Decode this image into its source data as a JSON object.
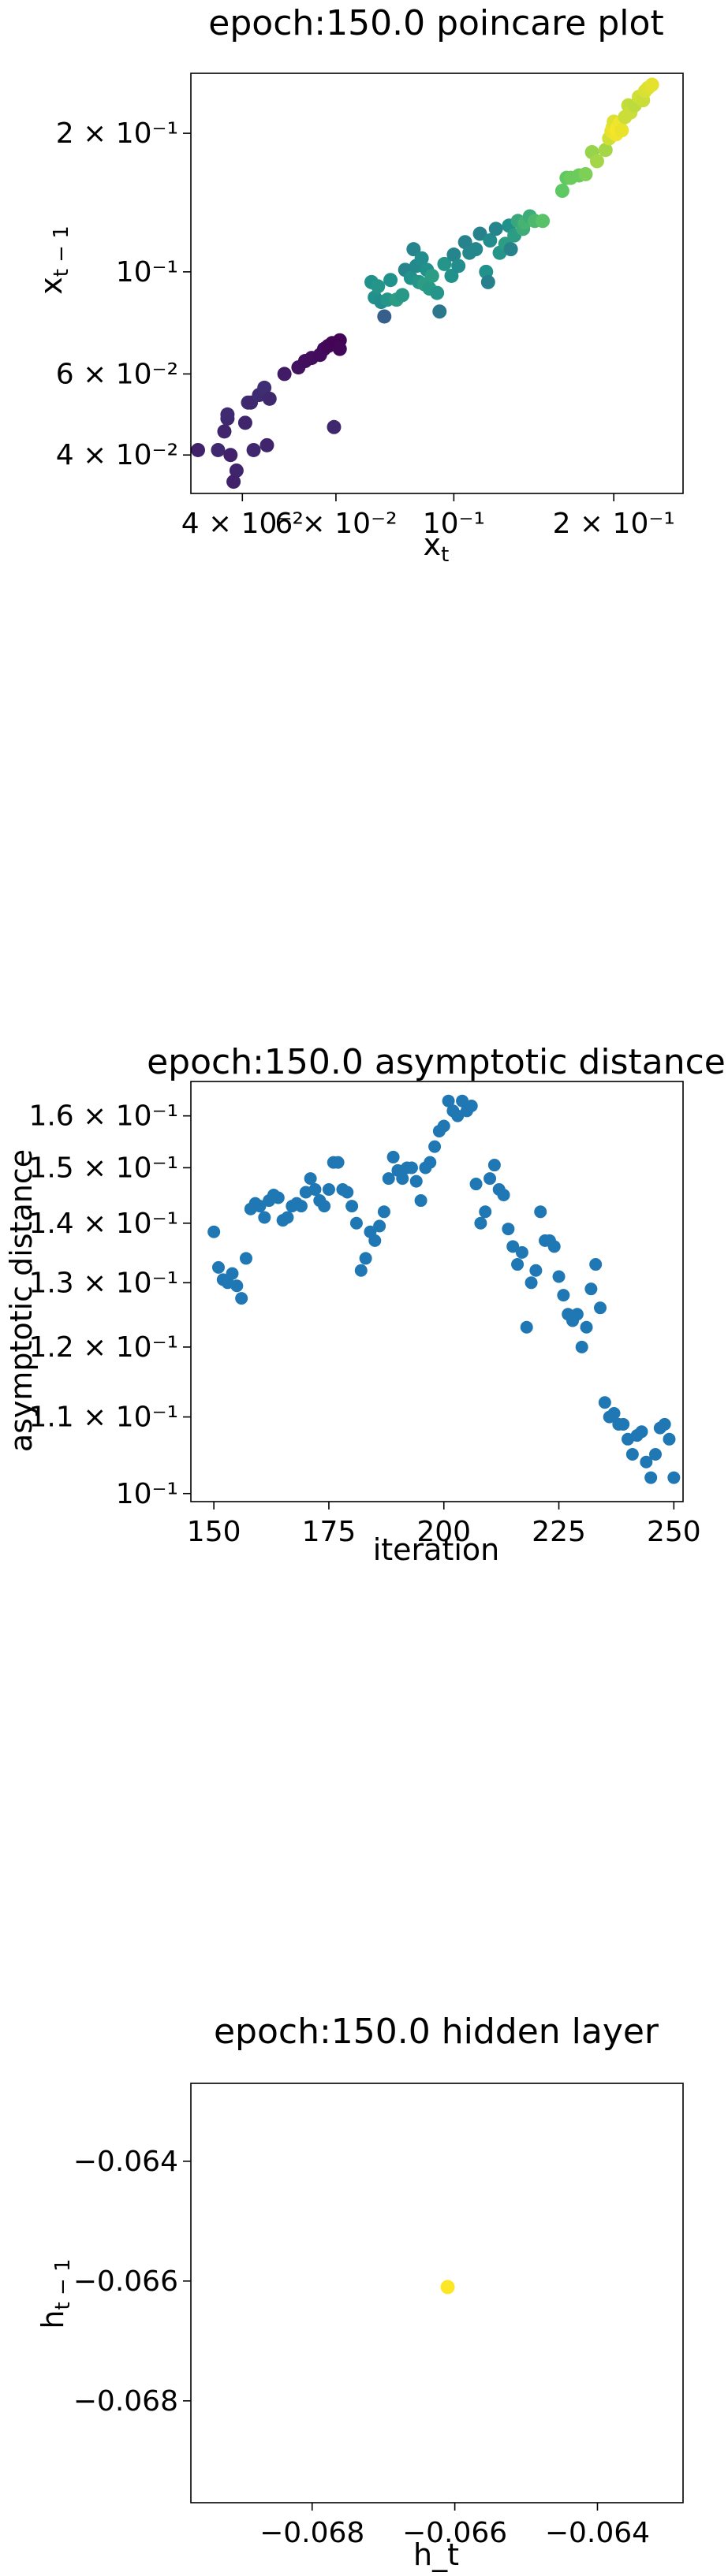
{
  "chart_data": [
    {
      "type": "scatter",
      "title": "epoch:150.0 poincare plot",
      "xlabel": "x_t",
      "ylabel": "x_{t-1}",
      "xscale": "log",
      "yscale": "log",
      "xlim": [
        0.032,
        0.27
      ],
      "ylim": [
        0.033,
        0.27
      ],
      "xticks": [
        {
          "value": 0.04,
          "label": "4 × 10⁻²"
        },
        {
          "value": 0.06,
          "label": "6 × 10⁻²"
        },
        {
          "value": 0.1,
          "label": "10⁻¹"
        },
        {
          "value": 0.2,
          "label": "2 × 10⁻¹"
        }
      ],
      "yticks": [
        {
          "value": 0.04,
          "label": "4 × 10⁻²"
        },
        {
          "value": 0.06,
          "label": "6 × 10⁻²"
        },
        {
          "value": 0.1,
          "label": "10⁻¹"
        },
        {
          "value": 0.2,
          "label": "2 × 10⁻¹"
        }
      ],
      "colormap": "viridis",
      "grid": false,
      "points": [
        {
          "x": 0.033,
          "y": 0.041,
          "c": 0.1
        },
        {
          "x": 0.036,
          "y": 0.041,
          "c": 0.12
        },
        {
          "x": 0.037,
          "y": 0.045,
          "c": 0.11
        },
        {
          "x": 0.0375,
          "y": 0.048,
          "c": 0.12
        },
        {
          "x": 0.0375,
          "y": 0.049,
          "c": 0.13
        },
        {
          "x": 0.038,
          "y": 0.04,
          "c": 0.1
        },
        {
          "x": 0.039,
          "y": 0.037,
          "c": 0.11
        },
        {
          "x": 0.0385,
          "y": 0.035,
          "c": 0.1
        },
        {
          "x": 0.041,
          "y": 0.052,
          "c": 0.13
        },
        {
          "x": 0.0415,
          "y": 0.052,
          "c": 0.12
        },
        {
          "x": 0.0405,
          "y": 0.047,
          "c": 0.11
        },
        {
          "x": 0.042,
          "y": 0.041,
          "c": 0.12
        },
        {
          "x": 0.043,
          "y": 0.054,
          "c": 0.13
        },
        {
          "x": 0.044,
          "y": 0.056,
          "c": 0.14
        },
        {
          "x": 0.0445,
          "y": 0.042,
          "c": 0.11
        },
        {
          "x": 0.045,
          "y": 0.053,
          "c": 0.12
        },
        {
          "x": 0.048,
          "y": 0.06,
          "c": 0.08
        },
        {
          "x": 0.051,
          "y": 0.062,
          "c": 0.05
        },
        {
          "x": 0.0525,
          "y": 0.064,
          "c": 0.04
        },
        {
          "x": 0.054,
          "y": 0.065,
          "c": 0.04
        },
        {
          "x": 0.056,
          "y": 0.066,
          "c": 0.03
        },
        {
          "x": 0.057,
          "y": 0.068,
          "c": 0.03
        },
        {
          "x": 0.058,
          "y": 0.069,
          "c": 0.02
        },
        {
          "x": 0.059,
          "y": 0.07,
          "c": 0.02
        },
        {
          "x": 0.06,
          "y": 0.07,
          "c": 0.01
        },
        {
          "x": 0.061,
          "y": 0.071,
          "c": 0.01
        },
        {
          "x": 0.061,
          "y": 0.068,
          "c": 0.02
        },
        {
          "x": 0.0595,
          "y": 0.046,
          "c": 0.12
        },
        {
          "x": 0.07,
          "y": 0.095,
          "c": 0.5
        },
        {
          "x": 0.071,
          "y": 0.088,
          "c": 0.5
        },
        {
          "x": 0.072,
          "y": 0.093,
          "c": 0.52
        },
        {
          "x": 0.073,
          "y": 0.086,
          "c": 0.48
        },
        {
          "x": 0.074,
          "y": 0.08,
          "c": 0.3
        },
        {
          "x": 0.075,
          "y": 0.087,
          "c": 0.52
        },
        {
          "x": 0.076,
          "y": 0.096,
          "c": 0.5
        },
        {
          "x": 0.078,
          "y": 0.087,
          "c": 0.55
        },
        {
          "x": 0.08,
          "y": 0.089,
          "c": 0.53
        },
        {
          "x": 0.081,
          "y": 0.101,
          "c": 0.45
        },
        {
          "x": 0.083,
          "y": 0.097,
          "c": 0.5
        },
        {
          "x": 0.084,
          "y": 0.112,
          "c": 0.45
        },
        {
          "x": 0.085,
          "y": 0.103,
          "c": 0.47
        },
        {
          "x": 0.086,
          "y": 0.095,
          "c": 0.52
        },
        {
          "x": 0.087,
          "y": 0.107,
          "c": 0.48
        },
        {
          "x": 0.088,
          "y": 0.094,
          "c": 0.55
        },
        {
          "x": 0.089,
          "y": 0.101,
          "c": 0.5
        },
        {
          "x": 0.09,
          "y": 0.092,
          "c": 0.53
        },
        {
          "x": 0.091,
          "y": 0.098,
          "c": 0.55
        },
        {
          "x": 0.093,
          "y": 0.09,
          "c": 0.52
        },
        {
          "x": 0.094,
          "y": 0.082,
          "c": 0.4
        },
        {
          "x": 0.096,
          "y": 0.104,
          "c": 0.52
        },
        {
          "x": 0.099,
          "y": 0.098,
          "c": 0.5
        },
        {
          "x": 0.1,
          "y": 0.109,
          "c": 0.45
        },
        {
          "x": 0.102,
          "y": 0.103,
          "c": 0.48
        },
        {
          "x": 0.105,
          "y": 0.116,
          "c": 0.44
        },
        {
          "x": 0.107,
          "y": 0.11,
          "c": 0.46
        },
        {
          "x": 0.11,
          "y": 0.112,
          "c": 0.46
        },
        {
          "x": 0.112,
          "y": 0.121,
          "c": 0.44
        },
        {
          "x": 0.115,
          "y": 0.1,
          "c": 0.5
        },
        {
          "x": 0.116,
          "y": 0.095,
          "c": 0.43
        },
        {
          "x": 0.117,
          "y": 0.117,
          "c": 0.48
        },
        {
          "x": 0.12,
          "y": 0.124,
          "c": 0.45
        },
        {
          "x": 0.122,
          "y": 0.11,
          "c": 0.52
        },
        {
          "x": 0.125,
          "y": 0.115,
          "c": 0.55
        },
        {
          "x": 0.127,
          "y": 0.126,
          "c": 0.5
        },
        {
          "x": 0.128,
          "y": 0.112,
          "c": 0.44
        },
        {
          "x": 0.13,
          "y": 0.12,
          "c": 0.55
        },
        {
          "x": 0.132,
          "y": 0.129,
          "c": 0.6
        },
        {
          "x": 0.135,
          "y": 0.124,
          "c": 0.62
        },
        {
          "x": 0.136,
          "y": 0.128,
          "c": 0.65
        },
        {
          "x": 0.139,
          "y": 0.132,
          "c": 0.62
        },
        {
          "x": 0.142,
          "y": 0.129,
          "c": 0.68
        },
        {
          "x": 0.147,
          "y": 0.129,
          "c": 0.72
        },
        {
          "x": 0.16,
          "y": 0.15,
          "c": 0.75
        },
        {
          "x": 0.163,
          "y": 0.16,
          "c": 0.75
        },
        {
          "x": 0.166,
          "y": 0.16,
          "c": 0.77
        },
        {
          "x": 0.172,
          "y": 0.162,
          "c": 0.77
        },
        {
          "x": 0.177,
          "y": 0.163,
          "c": 0.8
        },
        {
          "x": 0.182,
          "y": 0.182,
          "c": 0.84
        },
        {
          "x": 0.186,
          "y": 0.174,
          "c": 0.86
        },
        {
          "x": 0.193,
          "y": 0.184,
          "c": 0.86
        },
        {
          "x": 0.196,
          "y": 0.195,
          "c": 0.93
        },
        {
          "x": 0.198,
          "y": 0.202,
          "c": 0.96
        },
        {
          "x": 0.199,
          "y": 0.206,
          "c": 0.97
        },
        {
          "x": 0.2,
          "y": 0.212,
          "c": 0.95
        },
        {
          "x": 0.202,
          "y": 0.199,
          "c": 0.98
        },
        {
          "x": 0.203,
          "y": 0.205,
          "c": 0.99
        },
        {
          "x": 0.205,
          "y": 0.21,
          "c": 0.98
        },
        {
          "x": 0.207,
          "y": 0.203,
          "c": 0.97
        },
        {
          "x": 0.21,
          "y": 0.217,
          "c": 0.92
        },
        {
          "x": 0.213,
          "y": 0.23,
          "c": 0.91
        },
        {
          "x": 0.215,
          "y": 0.222,
          "c": 0.92
        },
        {
          "x": 0.219,
          "y": 0.23,
          "c": 0.9
        },
        {
          "x": 0.223,
          "y": 0.24,
          "c": 0.93
        },
        {
          "x": 0.227,
          "y": 0.236,
          "c": 0.92
        },
        {
          "x": 0.229,
          "y": 0.247,
          "c": 0.94
        },
        {
          "x": 0.232,
          "y": 0.251,
          "c": 0.95
        },
        {
          "x": 0.236,
          "y": 0.255,
          "c": 0.96
        }
      ]
    },
    {
      "type": "scatter",
      "title": "epoch:150.0 asymptotic distance",
      "xlabel": "iteration",
      "ylabel": "asymptotic distance",
      "yscale": "log",
      "xlim": [
        145,
        252
      ],
      "ylim": [
        0.099,
        0.167
      ],
      "xticks": [
        {
          "value": 150,
          "label": "150"
        },
        {
          "value": 175,
          "label": "175"
        },
        {
          "value": 200,
          "label": "200"
        },
        {
          "value": 225,
          "label": "225"
        },
        {
          "value": 250,
          "label": "250"
        }
      ],
      "yticks": [
        {
          "value": 0.1,
          "label": "10⁻¹"
        },
        {
          "value": 0.11,
          "label": "1.1 × 10⁻¹"
        },
        {
          "value": 0.12,
          "label": "1.2 × 10⁻¹"
        },
        {
          "value": 0.13,
          "label": "1.3 × 10⁻¹"
        },
        {
          "value": 0.14,
          "label": "1.4 × 10⁻¹"
        },
        {
          "value": 0.15,
          "label": "1.5 × 10⁻¹"
        },
        {
          "value": 0.16,
          "label": "1.6 × 10⁻¹"
        }
      ],
      "color": "#1f77b4",
      "grid": false,
      "x": [
        150,
        151,
        152,
        153,
        154,
        155,
        156,
        157,
        158,
        159,
        160,
        161,
        162,
        163,
        164,
        165,
        166,
        167,
        168,
        169,
        170,
        171,
        172,
        173,
        174,
        175,
        176,
        177,
        178,
        179,
        180,
        181,
        182,
        183,
        184,
        185,
        186,
        187,
        188,
        189,
        190,
        191,
        192,
        193,
        194,
        195,
        196,
        197,
        198,
        199,
        200,
        201,
        202,
        203,
        204,
        205,
        206,
        207,
        208,
        209,
        210,
        211,
        212,
        213,
        214,
        215,
        216,
        217,
        218,
        219,
        220,
        221,
        222,
        223,
        224,
        225,
        226,
        227,
        228,
        229,
        230,
        231,
        232,
        233,
        234,
        235,
        236,
        237,
        238,
        239,
        240,
        241,
        242,
        243,
        244,
        245,
        246,
        247,
        248,
        249,
        250
      ],
      "y": [
        0.1385,
        0.1325,
        0.1305,
        0.13,
        0.1315,
        0.1295,
        0.1275,
        0.134,
        0.1425,
        0.1435,
        0.143,
        0.141,
        0.144,
        0.145,
        0.1445,
        0.1405,
        0.141,
        0.143,
        0.1435,
        0.143,
        0.1455,
        0.148,
        0.146,
        0.144,
        0.143,
        0.146,
        0.151,
        0.151,
        0.146,
        0.1455,
        0.143,
        0.14,
        0.132,
        0.134,
        0.1385,
        0.137,
        0.1395,
        0.142,
        0.148,
        0.152,
        0.1495,
        0.148,
        0.15,
        0.15,
        0.1475,
        0.144,
        0.15,
        0.151,
        0.154,
        0.157,
        0.158,
        0.163,
        0.161,
        0.16,
        0.163,
        0.161,
        0.162,
        0.147,
        0.14,
        0.142,
        0.148,
        0.1505,
        0.146,
        0.145,
        0.139,
        0.136,
        0.133,
        0.135,
        0.123,
        0.13,
        0.132,
        0.142,
        0.137,
        0.137,
        0.136,
        0.131,
        0.128,
        0.125,
        0.124,
        0.125,
        0.12,
        0.123,
        0.129,
        0.133,
        0.126,
        0.112,
        0.11,
        0.1105,
        0.109,
        0.109,
        0.107,
        0.105,
        0.1075,
        0.108,
        0.104,
        0.102,
        0.105,
        0.1085,
        0.109,
        0.107,
        0.102
      ]
    },
    {
      "type": "scatter",
      "title": "epoch:150.0 hidden layer",
      "xlabel": "h_t",
      "ylabel": "h_{t-1}",
      "xlim": [
        -0.0697,
        -0.0628
      ],
      "ylim": [
        -0.0697,
        -0.0627
      ],
      "xticks": [
        {
          "value": -0.068,
          "label": "−0.068"
        },
        {
          "value": -0.066,
          "label": "−0.066"
        },
        {
          "value": -0.064,
          "label": "−0.064"
        }
      ],
      "yticks": [
        {
          "value": -0.064,
          "label": "−0.064"
        },
        {
          "value": -0.066,
          "label": "−0.066"
        },
        {
          "value": -0.068,
          "label": "−0.068"
        }
      ],
      "color": "#fde725",
      "grid": false,
      "points": [
        {
          "x": -0.0661,
          "y": -0.0661
        }
      ]
    }
  ]
}
